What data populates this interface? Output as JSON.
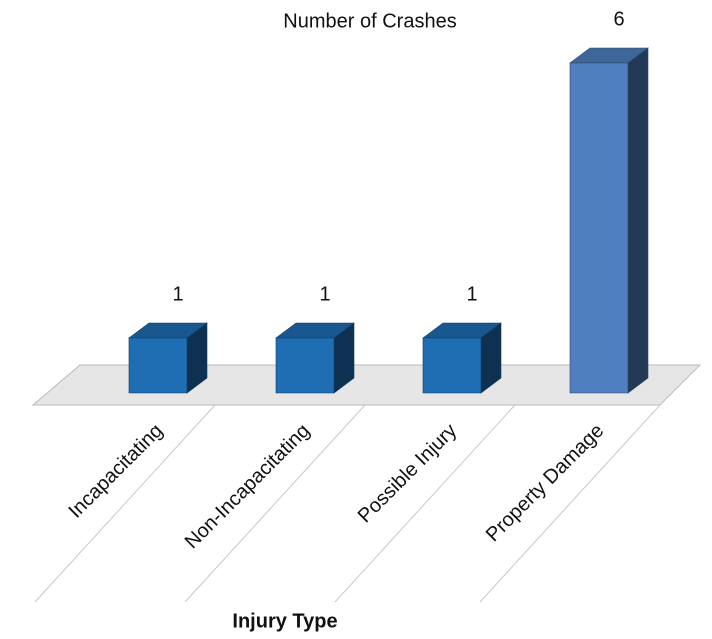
{
  "chart_data": {
    "type": "bar3d",
    "title": "Number of Crashes",
    "x_label": "Injury Type",
    "categories": [
      "Incapacitating",
      "Non-Incapacitating",
      "Possible Injury",
      "Property Damage"
    ],
    "values": [
      1,
      1,
      1,
      6
    ],
    "colors": [
      "#1f6db3",
      "#1f6db3",
      "#1f6db3",
      "#4f7fbf"
    ]
  }
}
